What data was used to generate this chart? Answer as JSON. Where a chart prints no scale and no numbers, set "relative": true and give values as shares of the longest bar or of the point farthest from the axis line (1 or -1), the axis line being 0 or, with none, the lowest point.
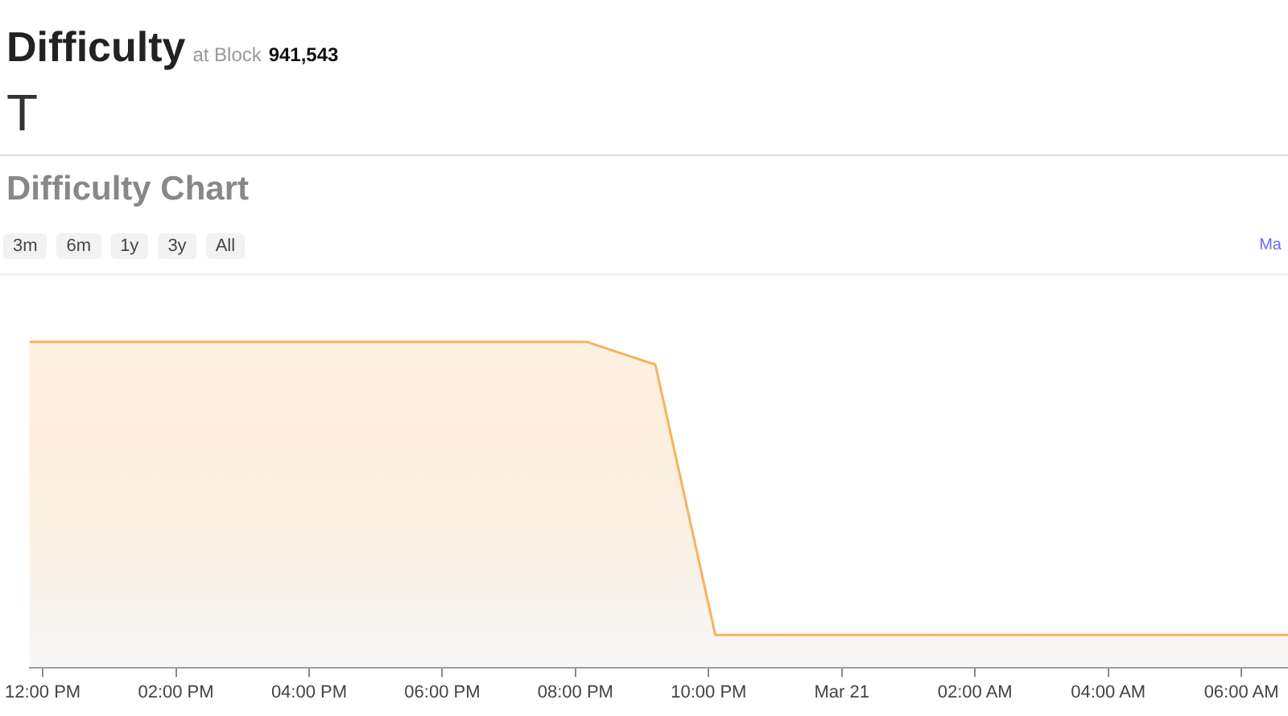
{
  "chart_data": {
    "type": "area",
    "title": "Difficulty Chart",
    "relative": true,
    "annotations": [
      "Difficulty",
      "at Block",
      "941,543",
      "T",
      "3m",
      "6m",
      "1y",
      "3y",
      "All",
      "Ma"
    ],
    "x": [
      "--03-20T11:48",
      "--03-20T20:10",
      "--03-20T21:12",
      "--03-20T22:06",
      "--03-21T06:42"
    ],
    "series": [
      {
        "color": "#f5b25f",
        "values": [
          1,
          1,
          0.93,
          0.1,
          0.1
        ]
      }
    ],
    "xlim": [
      "--03-20T11:48",
      "--03-21T06:42"
    ],
    "xticks": [
      {
        "value": "--03-20T12:00",
        "label": "12:00 PM"
      },
      {
        "value": "--03-20T14:00",
        "label": "02:00 PM"
      },
      {
        "value": "--03-20T16:00",
        "label": "04:00 PM"
      },
      {
        "value": "--03-20T18:00",
        "label": "06:00 PM"
      },
      {
        "value": "--03-20T20:00",
        "label": "08:00 PM"
      },
      {
        "value": "--03-20T22:00",
        "label": "10:00 PM"
      },
      {
        "value": "--03-21T00:00",
        "label": "Mar 21"
      },
      {
        "value": "--03-21T02:00",
        "label": "02:00 AM"
      },
      {
        "value": "--03-21T04:00",
        "label": "04:00 AM"
      },
      {
        "value": "--03-21T06:00",
        "label": "06:00 AM"
      }
    ],
    "legend": false,
    "marker": "none",
    "line_style": "solid"
  }
}
